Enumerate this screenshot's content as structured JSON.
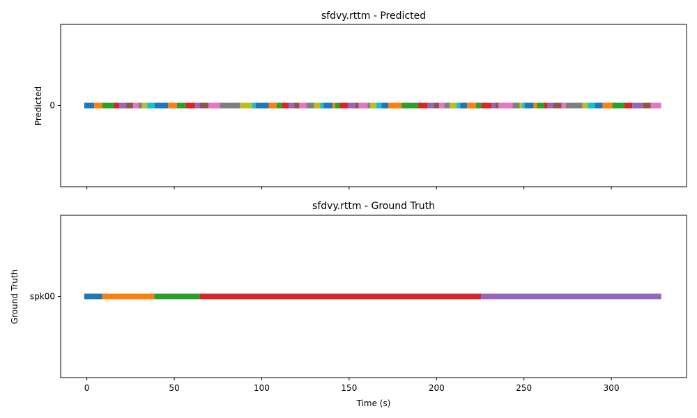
{
  "chart_data": [
    {
      "type": "timeline",
      "title": "sfdvy.rttm - Predicted",
      "ylabel": "Predicted",
      "xlabel": "",
      "show_x_tick_labels": false,
      "xlim": [
        -15,
        343
      ],
      "x_ticks": [
        0,
        50,
        100,
        150,
        200,
        250,
        300
      ],
      "y_ticks": [
        "0"
      ],
      "row": "0",
      "segments": [
        [
          -1.5,
          4.2,
          "#1f77b4"
        ],
        [
          4.2,
          8.8,
          "#ff7f0e"
        ],
        [
          8.8,
          15.5,
          "#2ca02c"
        ],
        [
          15.5,
          18.5,
          "#d62728"
        ],
        [
          18.5,
          22.5,
          "#9467bd"
        ],
        [
          22.5,
          26.5,
          "#8c564b"
        ],
        [
          26.5,
          29.5,
          "#e377c2"
        ],
        [
          29.5,
          31.5,
          "#7f7f7f"
        ],
        [
          31.5,
          34.5,
          "#bcbd22"
        ],
        [
          34.5,
          38.8,
          "#17becf"
        ],
        [
          38.8,
          46.5,
          "#1f77b4"
        ],
        [
          46.5,
          51.5,
          "#ff7f0e"
        ],
        [
          51.5,
          56.5,
          "#2ca02c"
        ],
        [
          56.5,
          62,
          "#d62728"
        ],
        [
          62,
          64.5,
          "#9467bd"
        ],
        [
          64.5,
          69.5,
          "#8c564b"
        ],
        [
          69.5,
          76,
          "#e377c2"
        ],
        [
          76,
          87.5,
          "#7f7f7f"
        ],
        [
          87.5,
          94.5,
          "#bcbd22"
        ],
        [
          94.5,
          96.5,
          "#17becf"
        ],
        [
          96.5,
          104,
          "#1f77b4"
        ],
        [
          104,
          108.5,
          "#ff7f0e"
        ],
        [
          108.5,
          111.5,
          "#2ca02c"
        ],
        [
          111.5,
          115.5,
          "#d62728"
        ],
        [
          115.5,
          118.5,
          "#9467bd"
        ],
        [
          118.5,
          121.5,
          "#8c564b"
        ],
        [
          121.5,
          125.5,
          "#e377c2"
        ],
        [
          125.5,
          130,
          "#7f7f7f"
        ],
        [
          130,
          133.5,
          "#bcbd22"
        ],
        [
          133.5,
          135.5,
          "#17becf"
        ],
        [
          135.5,
          140.5,
          "#1f77b4"
        ],
        [
          140.5,
          142,
          "#ff7f0e"
        ],
        [
          142,
          144.5,
          "#2ca02c"
        ],
        [
          144.5,
          149.5,
          "#d62728"
        ],
        [
          149.5,
          153.5,
          "#9467bd"
        ],
        [
          153.5,
          155.5,
          "#8c564b"
        ],
        [
          155.5,
          160.5,
          "#e377c2"
        ],
        [
          160.5,
          162,
          "#7f7f7f"
        ],
        [
          162,
          165.5,
          "#bcbd22"
        ],
        [
          165.5,
          168.5,
          "#17becf"
        ],
        [
          168.5,
          172.5,
          "#1f77b4"
        ],
        [
          172.5,
          180,
          "#ff7f0e"
        ],
        [
          180,
          189.5,
          "#2ca02c"
        ],
        [
          189.5,
          195,
          "#d62728"
        ],
        [
          195,
          198.5,
          "#9467bd"
        ],
        [
          198.5,
          201.5,
          "#8c564b"
        ],
        [
          201.5,
          204.5,
          "#e377c2"
        ],
        [
          204.5,
          207.5,
          "#7f7f7f"
        ],
        [
          207.5,
          211.5,
          "#bcbd22"
        ],
        [
          211.5,
          213.5,
          "#17becf"
        ],
        [
          213.5,
          217.5,
          "#1f77b4"
        ],
        [
          217.5,
          222.5,
          "#ff7f0e"
        ],
        [
          222.5,
          225.5,
          "#2ca02c"
        ],
        [
          225.5,
          231.5,
          "#d62728"
        ],
        [
          231.5,
          233.5,
          "#9467bd"
        ],
        [
          233.5,
          235.5,
          "#8c564b"
        ],
        [
          235.5,
          243.5,
          "#e377c2"
        ],
        [
          243.5,
          247.5,
          "#7f7f7f"
        ],
        [
          247.5,
          249,
          "#bcbd22"
        ],
        [
          249,
          250.5,
          "#17becf"
        ],
        [
          250.5,
          255.5,
          "#1f77b4"
        ],
        [
          255.5,
          257.5,
          "#ff7f0e"
        ],
        [
          257.5,
          261.5,
          "#2ca02c"
        ],
        [
          261.5,
          263.5,
          "#d62728"
        ],
        [
          263.5,
          266.5,
          "#9467bd"
        ],
        [
          266.5,
          271.5,
          "#8c564b"
        ],
        [
          271.5,
          274,
          "#e377c2"
        ],
        [
          274,
          283.5,
          "#7f7f7f"
        ],
        [
          283.5,
          286.5,
          "#bcbd22"
        ],
        [
          286.5,
          290.5,
          "#17becf"
        ],
        [
          290.5,
          295,
          "#1f77b4"
        ],
        [
          295,
          300.5,
          "#ff7f0e"
        ],
        [
          300.5,
          307.5,
          "#2ca02c"
        ],
        [
          307.5,
          312,
          "#d62728"
        ],
        [
          312,
          318,
          "#9467bd"
        ],
        [
          318,
          322.5,
          "#8c564b"
        ],
        [
          322.5,
          328.5,
          "#e377c2"
        ]
      ]
    },
    {
      "type": "timeline",
      "title": "sfdvy.rttm - Ground Truth",
      "ylabel": "Ground Truth",
      "xlabel": "Time (s)",
      "show_x_tick_labels": true,
      "xlim": [
        -15,
        343
      ],
      "x_ticks": [
        0,
        50,
        100,
        150,
        200,
        250,
        300
      ],
      "y_ticks": [
        "spk00"
      ],
      "row": "spk00",
      "segments": [
        [
          -1.5,
          8.8,
          "#1f77b4"
        ],
        [
          8.8,
          38.5,
          "#ff7f0e"
        ],
        [
          38.5,
          64.5,
          "#2ca02c"
        ],
        [
          64.5,
          225.5,
          "#d62728"
        ],
        [
          225.5,
          328.5,
          "#9467bd"
        ]
      ]
    }
  ]
}
